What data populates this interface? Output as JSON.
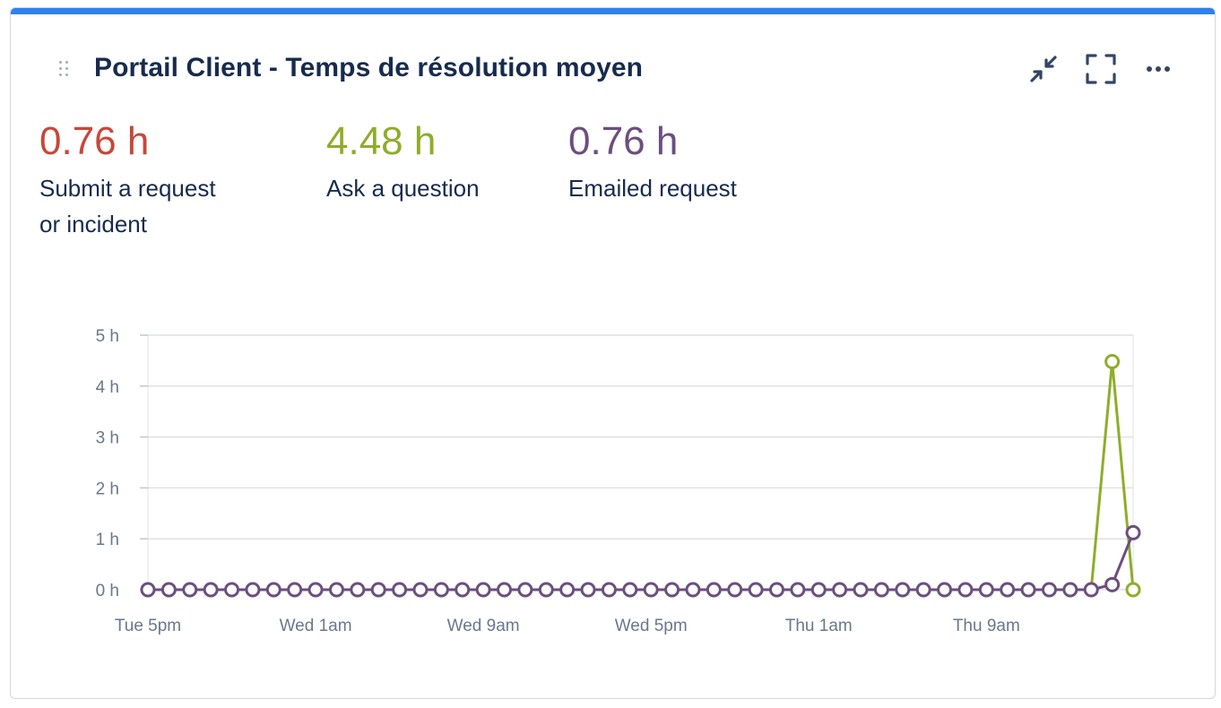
{
  "card": {
    "title": "Portail Client - Temps de résolution moyen",
    "accent_color": "#2f81f0",
    "icons": [
      "drag-handle-icon",
      "collapse-icon",
      "fullscreen-icon",
      "more-options-icon"
    ]
  },
  "metrics": [
    {
      "value": "0.76 h",
      "label_lines": [
        "Submit a request",
        "or incident"
      ],
      "color": "#c6483a"
    },
    {
      "value": "4.48 h",
      "label_lines": [
        "Ask a question"
      ],
      "color": "#8fad2a"
    },
    {
      "value": "0.76 h",
      "label_lines": [
        "Emailed request"
      ],
      "color": "#6b4f7e"
    }
  ],
  "chart_data": {
    "type": "line",
    "x_count": 48,
    "x_ticks": [
      {
        "index": 0,
        "label": "Tue 5pm"
      },
      {
        "index": 8,
        "label": "Wed 1am"
      },
      {
        "index": 16,
        "label": "Wed 9am"
      },
      {
        "index": 24,
        "label": "Wed 5pm"
      },
      {
        "index": 32,
        "label": "Thu 1am"
      },
      {
        "index": 40,
        "label": "Thu 9am"
      }
    ],
    "y_ticks": [
      {
        "value": 0,
        "label": "0 h"
      },
      {
        "value": 1,
        "label": "1 h"
      },
      {
        "value": 2,
        "label": "2 h"
      },
      {
        "value": 3,
        "label": "3 h"
      },
      {
        "value": 4,
        "label": "4 h"
      },
      {
        "value": 5,
        "label": "5 h"
      }
    ],
    "ylim": [
      0,
      5
    ],
    "grid": true,
    "series": [
      {
        "name": "Ask a question",
        "color": "#8fad2a",
        "values": [
          0,
          0,
          0,
          0,
          0,
          0,
          0,
          0,
          0,
          0,
          0,
          0,
          0,
          0,
          0,
          0,
          0,
          0,
          0,
          0,
          0,
          0,
          0,
          0,
          0,
          0,
          0,
          0,
          0,
          0,
          0,
          0,
          0,
          0,
          0,
          0,
          0,
          0,
          0,
          0,
          0,
          0,
          0,
          0,
          0,
          0,
          4.48,
          0
        ],
        "markers": [
          46,
          47
        ]
      },
      {
        "name": "Emailed request",
        "color": "#6b4f7e",
        "values": [
          0,
          0,
          0,
          0,
          0,
          0,
          0,
          0,
          0,
          0,
          0,
          0,
          0,
          0,
          0,
          0,
          0,
          0,
          0,
          0,
          0,
          0,
          0,
          0,
          0,
          0,
          0,
          0,
          0,
          0,
          0,
          0,
          0,
          0,
          0,
          0,
          0,
          0,
          0,
          0,
          0,
          0,
          0,
          0,
          0,
          0,
          0.1,
          1.12
        ],
        "markers": [
          0,
          1,
          2,
          3,
          4,
          5,
          6,
          7,
          8,
          9,
          10,
          11,
          12,
          13,
          14,
          15,
          16,
          17,
          18,
          19,
          20,
          21,
          22,
          23,
          24,
          25,
          26,
          27,
          28,
          29,
          30,
          31,
          32,
          33,
          34,
          35,
          36,
          37,
          38,
          39,
          40,
          41,
          42,
          43,
          44,
          45,
          46,
          47
        ]
      }
    ]
  }
}
